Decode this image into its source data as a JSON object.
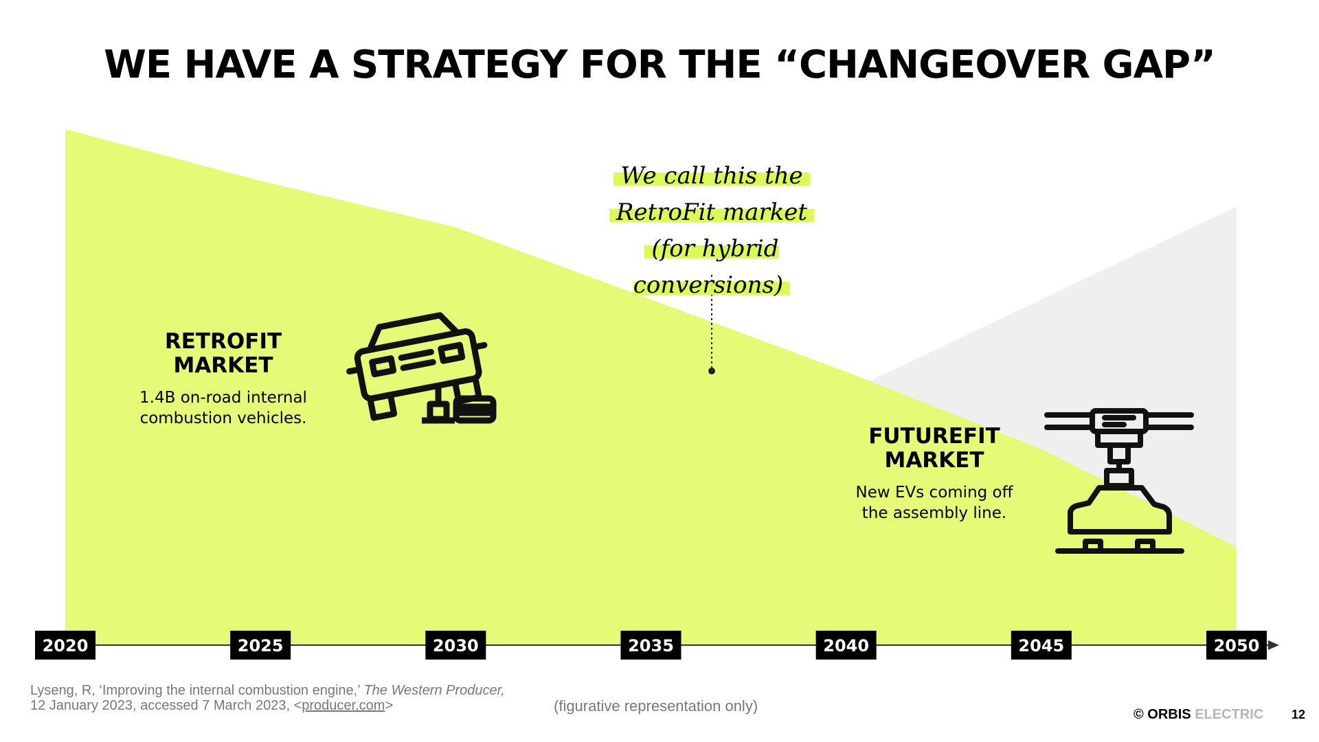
{
  "title": "WE HAVE A STRATEGY FOR THE “CHANGEOVER GAP”",
  "chart_data": {
    "type": "area",
    "x": [
      2020,
      2025,
      2030,
      2035,
      2040,
      2045,
      2050
    ],
    "xticks": [
      "2020",
      "2025",
      "2030",
      "2035",
      "2040",
      "2045",
      "2050"
    ],
    "series": [
      {
        "name": "RETROFIT MARKET",
        "color": "#e7fa78",
        "values": [
          100,
          90,
          81,
          67,
          53,
          38,
          19
        ]
      },
      {
        "name": "FUTUREFIT MARKET",
        "color": "#efefef",
        "values": [
          0,
          7,
          17,
          30,
          49,
          67,
          85
        ]
      }
    ],
    "ylim": [
      0,
      100
    ],
    "figurative": true
  },
  "annotations": {
    "retrofit": {
      "title_line1": "RETROFIT",
      "title_line2": "MARKET",
      "desc_line1": "1.4B on-road internal",
      "desc_line2": "combustion vehicles."
    },
    "futurefit": {
      "title_line1": "FUTUREFIT",
      "title_line2": "MARKET",
      "desc_line1": "New EVs coming off",
      "desc_line2": "the assembly line."
    },
    "callout": {
      "line1": "We call this the",
      "line2": "RetroFit market",
      "line3": "(for hybrid conversions)"
    }
  },
  "icons": {
    "retrofit": "car-on-jack-icon",
    "futurefit": "robotic-arm-car-icon"
  },
  "footer": {
    "citation_line1_plain": "Lyseng, R, ‘Improving the internal combustion engine,’ ",
    "citation_line1_italic": "The Western Producer,",
    "citation_line2_plain": "12 January 2023, accessed 7 March 2023, <",
    "citation_link": "producer.com",
    "citation_line2_end": ">",
    "note": "(figurative representation only)",
    "brand_symbol": "© ORBIS",
    "brand_rest": " ELECTRIC",
    "page_number": "12"
  },
  "colors": {
    "retrofit_area": "#e7fa78",
    "futurefit_area": "#efefef",
    "tick_bg": "#000000",
    "tick_text": "#ffffff",
    "highlight": "#d6fa46"
  }
}
